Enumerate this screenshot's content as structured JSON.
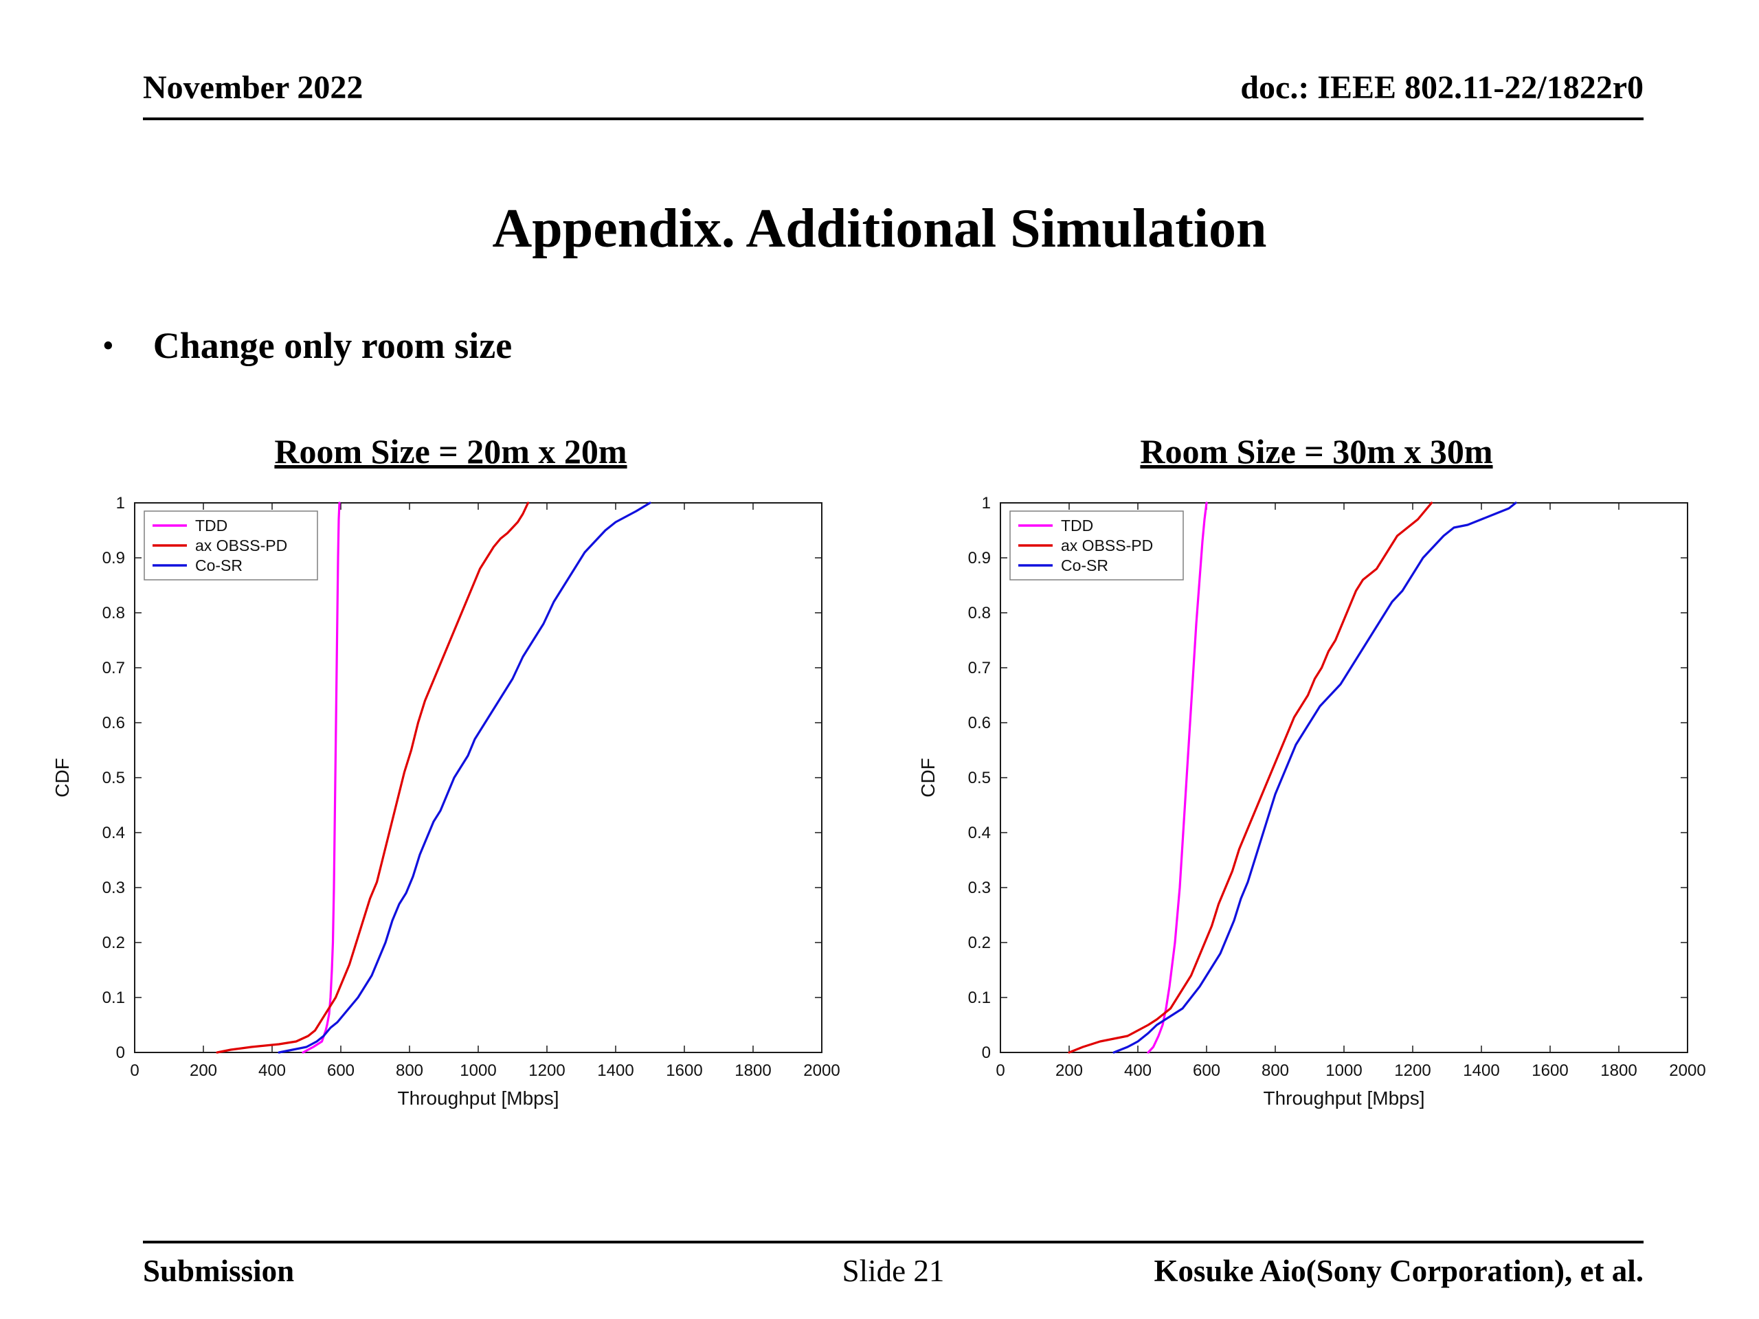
{
  "header": {
    "date": "November 2022",
    "doc": "doc.: IEEE 802.11-22/1822r0"
  },
  "title": "Appendix. Additional Simulation",
  "bullet": {
    "marker": "•",
    "text": "Change only room size"
  },
  "footer": {
    "left": "Submission",
    "center": "Slide 21",
    "right": "Kosuke Aio(Sony Corporation), et al."
  },
  "chart_data": [
    {
      "type": "line",
      "title": "Room Size = 20m x 20m",
      "xlabel": "Throughput [Mbps]",
      "ylabel": "CDF",
      "xlim": [
        0,
        2000
      ],
      "ylim": [
        0,
        1
      ],
      "xticks": [
        0,
        200,
        400,
        600,
        800,
        1000,
        1200,
        1400,
        1600,
        1800,
        2000
      ],
      "yticks": [
        0,
        0.1,
        0.2,
        0.3,
        0.4,
        0.5,
        0.6,
        0.7,
        0.8,
        0.9,
        1
      ],
      "grid": false,
      "legend_position": "top-left",
      "series": [
        {
          "name": "TDD",
          "color": "#ff00ff",
          "points": [
            [
              490,
              0
            ],
            [
              520,
              0.01
            ],
            [
              545,
              0.02
            ],
            [
              556,
              0.04
            ],
            [
              560,
              0.05
            ],
            [
              566,
              0.07
            ],
            [
              570,
              0.1
            ],
            [
              574,
              0.15
            ],
            [
              577,
              0.2
            ],
            [
              580,
              0.3
            ],
            [
              582,
              0.4
            ],
            [
              584,
              0.5
            ],
            [
              586,
              0.6
            ],
            [
              588,
              0.7
            ],
            [
              590,
              0.8
            ],
            [
              592,
              0.9
            ],
            [
              594,
              0.97
            ],
            [
              596,
              1.0
            ]
          ]
        },
        {
          "name": "ax OBSS-PD",
          "color": "#e00000",
          "points": [
            [
              240,
              0
            ],
            [
              280,
              0.005
            ],
            [
              340,
              0.01
            ],
            [
              420,
              0.015
            ],
            [
              470,
              0.02
            ],
            [
              505,
              0.03
            ],
            [
              525,
              0.04
            ],
            [
              545,
              0.06
            ],
            [
              565,
              0.08
            ],
            [
              585,
              0.1
            ],
            [
              605,
              0.13
            ],
            [
              625,
              0.16
            ],
            [
              645,
              0.2
            ],
            [
              665,
              0.24
            ],
            [
              685,
              0.28
            ],
            [
              705,
              0.31
            ],
            [
              725,
              0.36
            ],
            [
              745,
              0.41
            ],
            [
              765,
              0.46
            ],
            [
              785,
              0.51
            ],
            [
              805,
              0.55
            ],
            [
              825,
              0.6
            ],
            [
              845,
              0.64
            ],
            [
              865,
              0.67
            ],
            [
              885,
              0.7
            ],
            [
              905,
              0.73
            ],
            [
              925,
              0.76
            ],
            [
              945,
              0.79
            ],
            [
              965,
              0.82
            ],
            [
              985,
              0.85
            ],
            [
              1005,
              0.88
            ],
            [
              1025,
              0.9
            ],
            [
              1045,
              0.92
            ],
            [
              1065,
              0.935
            ],
            [
              1085,
              0.945
            ],
            [
              1100,
              0.955
            ],
            [
              1115,
              0.965
            ],
            [
              1130,
              0.98
            ],
            [
              1145,
              1.0
            ]
          ]
        },
        {
          "name": "Co-SR",
          "color": "#1010dd",
          "points": [
            [
              420,
              0
            ],
            [
              460,
              0.005
            ],
            [
              500,
              0.01
            ],
            [
              530,
              0.02
            ],
            [
              550,
              0.03
            ],
            [
              570,
              0.045
            ],
            [
              590,
              0.055
            ],
            [
              610,
              0.07
            ],
            [
              630,
              0.085
            ],
            [
              650,
              0.1
            ],
            [
              670,
              0.12
            ],
            [
              690,
              0.14
            ],
            [
              710,
              0.17
            ],
            [
              730,
              0.2
            ],
            [
              750,
              0.24
            ],
            [
              770,
              0.27
            ],
            [
              790,
              0.29
            ],
            [
              810,
              0.32
            ],
            [
              830,
              0.36
            ],
            [
              850,
              0.39
            ],
            [
              870,
              0.42
            ],
            [
              890,
              0.44
            ],
            [
              910,
              0.47
            ],
            [
              930,
              0.5
            ],
            [
              950,
              0.52
            ],
            [
              970,
              0.54
            ],
            [
              990,
              0.57
            ],
            [
              1010,
              0.59
            ],
            [
              1040,
              0.62
            ],
            [
              1070,
              0.65
            ],
            [
              1100,
              0.68
            ],
            [
              1130,
              0.72
            ],
            [
              1160,
              0.75
            ],
            [
              1190,
              0.78
            ],
            [
              1220,
              0.82
            ],
            [
              1250,
              0.85
            ],
            [
              1280,
              0.88
            ],
            [
              1310,
              0.91
            ],
            [
              1340,
              0.93
            ],
            [
              1370,
              0.95
            ],
            [
              1400,
              0.965
            ],
            [
              1430,
              0.975
            ],
            [
              1460,
              0.985
            ],
            [
              1500,
              1.0
            ]
          ]
        }
      ]
    },
    {
      "type": "line",
      "title": "Room Size = 30m x 30m",
      "xlabel": "Throughput [Mbps]",
      "ylabel": "CDF",
      "xlim": [
        0,
        2000
      ],
      "ylim": [
        0,
        1
      ],
      "xticks": [
        0,
        200,
        400,
        600,
        800,
        1000,
        1200,
        1400,
        1600,
        1800,
        2000
      ],
      "yticks": [
        0,
        0.1,
        0.2,
        0.3,
        0.4,
        0.5,
        0.6,
        0.7,
        0.8,
        0.9,
        1
      ],
      "grid": false,
      "legend_position": "top-left",
      "series": [
        {
          "name": "TDD",
          "color": "#ff00ff",
          "points": [
            [
              430,
              0
            ],
            [
              445,
              0.01
            ],
            [
              460,
              0.03
            ],
            [
              472,
              0.05
            ],
            [
              482,
              0.08
            ],
            [
              492,
              0.12
            ],
            [
              500,
              0.16
            ],
            [
              508,
              0.2
            ],
            [
              515,
              0.25
            ],
            [
              522,
              0.3
            ],
            [
              528,
              0.36
            ],
            [
              534,
              0.42
            ],
            [
              540,
              0.48
            ],
            [
              546,
              0.54
            ],
            [
              552,
              0.6
            ],
            [
              558,
              0.66
            ],
            [
              564,
              0.72
            ],
            [
              570,
              0.78
            ],
            [
              576,
              0.83
            ],
            [
              582,
              0.88
            ],
            [
              588,
              0.93
            ],
            [
              594,
              0.97
            ],
            [
              600,
              1.0
            ]
          ]
        },
        {
          "name": "ax OBSS-PD",
          "color": "#e00000",
          "points": [
            [
              200,
              0
            ],
            [
              240,
              0.01
            ],
            [
              290,
              0.02
            ],
            [
              330,
              0.025
            ],
            [
              370,
              0.03
            ],
            [
              400,
              0.04
            ],
            [
              430,
              0.05
            ],
            [
              455,
              0.06
            ],
            [
              475,
              0.07
            ],
            [
              495,
              0.08
            ],
            [
              515,
              0.1
            ],
            [
              535,
              0.12
            ],
            [
              555,
              0.14
            ],
            [
              575,
              0.17
            ],
            [
              595,
              0.2
            ],
            [
              615,
              0.23
            ],
            [
              635,
              0.27
            ],
            [
              655,
              0.3
            ],
            [
              675,
              0.33
            ],
            [
              695,
              0.37
            ],
            [
              715,
              0.4
            ],
            [
              735,
              0.43
            ],
            [
              755,
              0.46
            ],
            [
              775,
              0.49
            ],
            [
              795,
              0.52
            ],
            [
              815,
              0.55
            ],
            [
              835,
              0.58
            ],
            [
              855,
              0.61
            ],
            [
              875,
              0.63
            ],
            [
              895,
              0.65
            ],
            [
              915,
              0.68
            ],
            [
              935,
              0.7
            ],
            [
              955,
              0.73
            ],
            [
              975,
              0.75
            ],
            [
              995,
              0.78
            ],
            [
              1015,
              0.81
            ],
            [
              1035,
              0.84
            ],
            [
              1055,
              0.86
            ],
            [
              1075,
              0.87
            ],
            [
              1095,
              0.88
            ],
            [
              1115,
              0.9
            ],
            [
              1135,
              0.92
            ],
            [
              1155,
              0.94
            ],
            [
              1175,
              0.95
            ],
            [
              1195,
              0.96
            ],
            [
              1215,
              0.97
            ],
            [
              1235,
              0.985
            ],
            [
              1255,
              1.0
            ]
          ]
        },
        {
          "name": "Co-SR",
          "color": "#1010dd",
          "points": [
            [
              330,
              0
            ],
            [
              370,
              0.01
            ],
            [
              400,
              0.02
            ],
            [
              430,
              0.035
            ],
            [
              455,
              0.05
            ],
            [
              480,
              0.06
            ],
            [
              505,
              0.07
            ],
            [
              530,
              0.08
            ],
            [
              555,
              0.1
            ],
            [
              580,
              0.12
            ],
            [
              600,
              0.14
            ],
            [
              620,
              0.16
            ],
            [
              640,
              0.18
            ],
            [
              660,
              0.21
            ],
            [
              680,
              0.24
            ],
            [
              700,
              0.28
            ],
            [
              720,
              0.31
            ],
            [
              740,
              0.35
            ],
            [
              760,
              0.39
            ],
            [
              780,
              0.43
            ],
            [
              800,
              0.47
            ],
            [
              820,
              0.5
            ],
            [
              840,
              0.53
            ],
            [
              860,
              0.56
            ],
            [
              880,
              0.58
            ],
            [
              900,
              0.6
            ],
            [
              930,
              0.63
            ],
            [
              960,
              0.65
            ],
            [
              990,
              0.67
            ],
            [
              1020,
              0.7
            ],
            [
              1050,
              0.73
            ],
            [
              1080,
              0.76
            ],
            [
              1110,
              0.79
            ],
            [
              1140,
              0.82
            ],
            [
              1170,
              0.84
            ],
            [
              1200,
              0.87
            ],
            [
              1230,
              0.9
            ],
            [
              1260,
              0.92
            ],
            [
              1290,
              0.94
            ],
            [
              1320,
              0.955
            ],
            [
              1360,
              0.96
            ],
            [
              1400,
              0.97
            ],
            [
              1440,
              0.98
            ],
            [
              1480,
              0.99
            ],
            [
              1500,
              1.0
            ]
          ]
        }
      ]
    }
  ]
}
